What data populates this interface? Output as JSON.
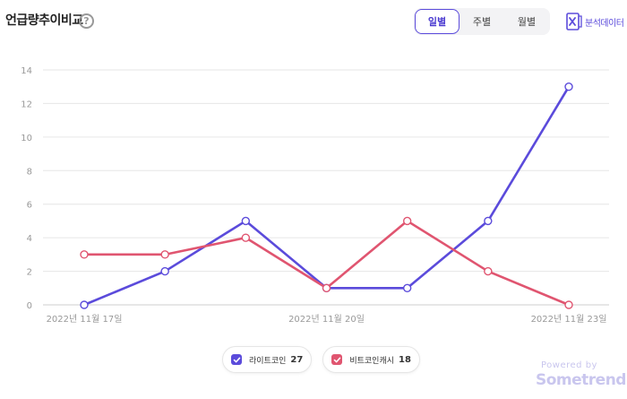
{
  "header": {
    "title": "언급량추이비교",
    "help_icon": "question-icon"
  },
  "period_tabs": [
    {
      "label": "일별",
      "active": true
    },
    {
      "label": "주별",
      "active": false
    },
    {
      "label": "월별",
      "active": false
    }
  ],
  "excel": {
    "label": "분석데이터",
    "icon": "excel-icon"
  },
  "legend": [
    {
      "name": "라이트코인",
      "count": "27",
      "color": "#5b4bdb"
    },
    {
      "name": "비트코인캐시",
      "count": "18",
      "color": "#e05570"
    }
  ],
  "footer": {
    "powered_by": "Powered by",
    "brand": "Sometrend"
  },
  "chart_data": {
    "type": "line",
    "x": [
      "2022-11-17",
      "2022-11-18",
      "2022-11-19",
      "2022-11-20",
      "2022-11-21",
      "2022-11-22",
      "2022-11-23"
    ],
    "x_tick_labels": [
      "2022년 11월 17일",
      "2022년 11월 20일",
      "2022년 11월 23일"
    ],
    "y_ticks": [
      0,
      2,
      4,
      6,
      8,
      10,
      12,
      14
    ],
    "ylim": [
      0,
      14
    ],
    "grid": true,
    "series": [
      {
        "name": "라이트코인",
        "color": "#5b4bdb",
        "values": [
          0,
          2,
          5,
          1,
          1,
          5,
          13
        ]
      },
      {
        "name": "비트코인캐시",
        "color": "#e05570",
        "values": [
          3,
          3,
          4,
          1,
          5,
          2,
          0
        ]
      }
    ]
  }
}
